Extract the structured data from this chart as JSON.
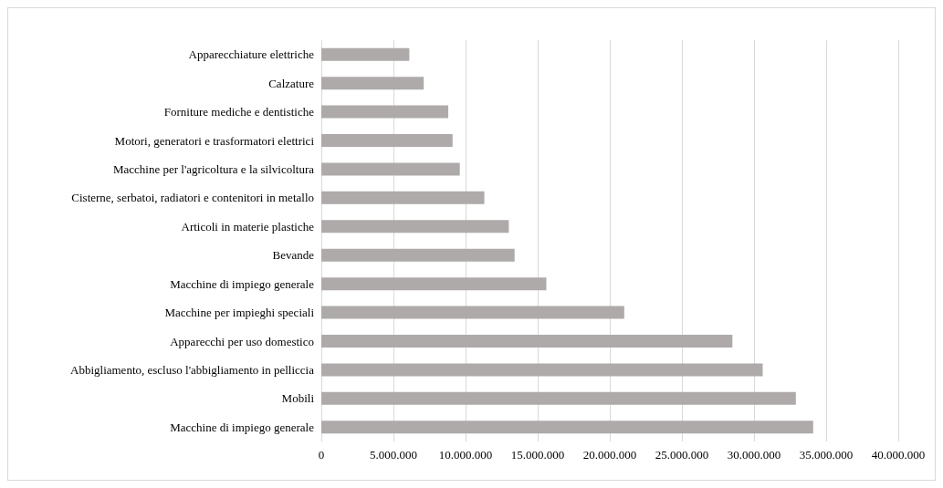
{
  "chart_data": {
    "type": "bar",
    "orientation": "horizontal",
    "categories": [
      "Apparecchiature elettriche",
      "Calzature",
      "Forniture mediche e dentistiche",
      "Motori, generatori e trasformatori elettrici",
      "Macchine per l'agricoltura e la silvicoltura",
      "Cisterne, serbatoi, radiatori e contenitori in metallo",
      "Articoli in materie plastiche",
      "Bevande",
      "Macchine di impiego generale",
      "Macchine per impieghi speciali",
      "Apparecchi per uso domestico",
      "Abbigliamento, escluso l'abbigliamento in pelliccia",
      "Mobili",
      "Macchine di impiego generale"
    ],
    "values": [
      6100000,
      7100000,
      8800000,
      9100000,
      9600000,
      11300000,
      13000000,
      13400000,
      15600000,
      21000000,
      28500000,
      30600000,
      32900000,
      34100000
    ],
    "color": "#aeaaaa",
    "xlim": [
      0,
      40000000
    ],
    "xticks": [
      {
        "value": 0,
        "label": "0"
      },
      {
        "value": 5000000,
        "label": "5.000.000"
      },
      {
        "value": 10000000,
        "label": "10.000.000"
      },
      {
        "value": 15000000,
        "label": "15.000.000"
      },
      {
        "value": 20000000,
        "label": "20.000.000"
      },
      {
        "value": 25000000,
        "label": "25.000.000"
      },
      {
        "value": 30000000,
        "label": "30.000.000"
      },
      {
        "value": 35000000,
        "label": "35.000.000"
      },
      {
        "value": 40000000,
        "label": "40.000.000"
      }
    ],
    "grid": "x"
  }
}
